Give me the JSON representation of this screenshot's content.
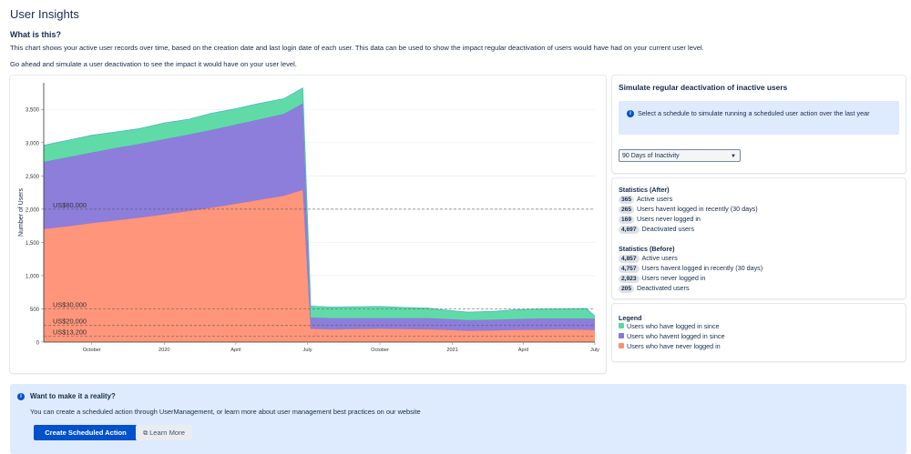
{
  "page": {
    "title": "User Insights",
    "what_heading": "What is this?",
    "desc1": "This chart shows your active user records over time, based on the creation date and last login date of each user. This data can be used to show the impact regular deactivation of users would have had on your current user level.",
    "desc2": "Go ahead and simulate a user deactivation to see the impact it would have on your user level."
  },
  "simulate": {
    "title": "Simulate regular deactivation of inactive users",
    "info": "Select a schedule to simulate running a scheduled user action over the last year",
    "select_value": "90 Days of Inactivity",
    "info_icon": "i"
  },
  "stats_after": {
    "title": "Statistics (After)",
    "rows": [
      {
        "value": "365",
        "label": "Active users"
      },
      {
        "value": "265",
        "label": "Users havent logged in recently (30 days)"
      },
      {
        "value": "169",
        "label": "Users never logged in"
      },
      {
        "value": "4,697",
        "label": "Deactivated users"
      }
    ]
  },
  "stats_before": {
    "title": "Statistics (Before)",
    "rows": [
      {
        "value": "4,857",
        "label": "Active users"
      },
      {
        "value": "4,757",
        "label": "Users havent logged in recently (30 days)"
      },
      {
        "value": "2,923",
        "label": "Users never logged in"
      },
      {
        "value": "205",
        "label": "Deactivated users"
      }
    ]
  },
  "legend": {
    "title": "Legend",
    "items": [
      {
        "label": "Users who have logged in since",
        "color": "#57d9a3"
      },
      {
        "label": "Users who havent logged in since",
        "color": "#8777d9"
      },
      {
        "label": "Users who have never logged in",
        "color": "#ff8f73"
      }
    ]
  },
  "banner": {
    "title": "Want to make it a reality?",
    "text": "You can create a scheduled action through UserManagement, or learn more about user management best practices on our website",
    "primary_button": "Create Scheduled Action",
    "secondary_button": "Learn More",
    "icon": "i",
    "external_icon": "external-link-icon"
  },
  "chart_data": {
    "type": "area",
    "stacked": true,
    "ylabel": "Number of Users",
    "ylim": [
      0,
      3900
    ],
    "yticks": [
      0,
      500,
      1000,
      1500,
      2000,
      2500,
      3000,
      3500
    ],
    "ytick_labels": [
      "0",
      "500",
      "1,000",
      "1,500",
      "2,000",
      "2,500",
      "3,000",
      "3,500"
    ],
    "xlim": [
      "2019-08-01",
      "2021-07-01"
    ],
    "xticks": [
      {
        "date": "2019-10-01",
        "label": "October"
      },
      {
        "date": "2020-01-01",
        "label": "2020"
      },
      {
        "date": "2020-04-01",
        "label": "April"
      },
      {
        "date": "2020-07-01",
        "label": "July"
      },
      {
        "date": "2020-10-01",
        "label": "October"
      },
      {
        "date": "2021-01-01",
        "label": "2021"
      },
      {
        "date": "2021-04-01",
        "label": "April"
      },
      {
        "date": "2021-07-01",
        "label": "July"
      }
    ],
    "x": [
      "2019-08-01",
      "2019-09-01",
      "2019-10-01",
      "2019-11-01",
      "2019-12-01",
      "2020-01-01",
      "2020-02-01",
      "2020-03-01",
      "2020-04-01",
      "2020-05-01",
      "2020-06-01",
      "2020-06-25",
      "2020-07-05",
      "2020-08-01",
      "2020-09-01",
      "2020-10-01",
      "2020-11-01",
      "2020-12-01",
      "2020-12-20",
      "2021-01-20",
      "2021-02-20",
      "2021-03-20",
      "2021-04-20",
      "2021-05-20",
      "2021-06-20",
      "2021-07-01"
    ],
    "series": [
      {
        "name": "Users who have never logged in",
        "color": "#ff8f73",
        "values": [
          1700,
          1740,
          1790,
          1830,
          1870,
          1920,
          1970,
          2020,
          2080,
          2140,
          2200,
          2290,
          200,
          190,
          195,
          200,
          195,
          190,
          185,
          170,
          175,
          180,
          185,
          190,
          185,
          180
        ]
      },
      {
        "name": "Users who havent logged in since",
        "color": "#8777d9",
        "values": [
          1010,
          1040,
          1060,
          1090,
          1110,
          1130,
          1150,
          1170,
          1190,
          1210,
          1230,
          1300,
          170,
          170,
          165,
          160,
          165,
          170,
          165,
          160,
          160,
          165,
          170,
          165,
          170,
          170
        ]
      },
      {
        "name": "Users who have logged in since",
        "color": "#57d9a3",
        "values": [
          250,
          255,
          260,
          240,
          230,
          245,
          230,
          250,
          240,
          240,
          230,
          230,
          170,
          165,
          170,
          175,
          160,
          150,
          135,
          120,
          125,
          140,
          140,
          145,
          150,
          40
        ]
      }
    ],
    "reference_lines": [
      {
        "label": "US$60,000",
        "y": 2000
      },
      {
        "label": "US$30,000",
        "y": 500
      },
      {
        "label": "US$20,000",
        "y": 250
      },
      {
        "label": "US$13,200",
        "y": 90
      }
    ]
  }
}
